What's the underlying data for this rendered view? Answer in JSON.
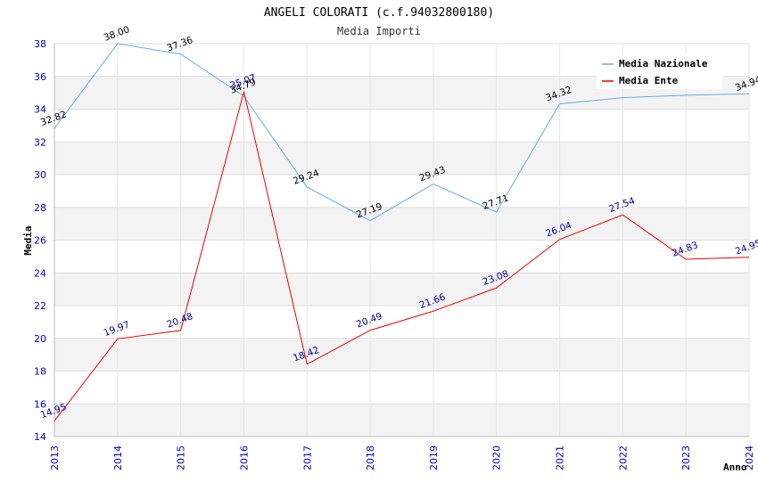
{
  "chart_data": {
    "type": "line",
    "title": "ANGELI COLORATI (c.f.94032800180)",
    "subtitle": "Media Importi",
    "xlabel": "Anno",
    "ylabel": "Media",
    "ylim": [
      14,
      38
    ],
    "yticks": [
      "14",
      "16",
      "18",
      "20",
      "22",
      "24",
      "26",
      "28",
      "30",
      "32",
      "34",
      "36",
      "38"
    ],
    "categories": [
      "2013",
      "2014",
      "2015",
      "2016",
      "2017",
      "2018",
      "2019",
      "2020",
      "2021",
      "2022",
      "2023",
      "2024"
    ],
    "grid": true,
    "legend_position": "top-right",
    "series": [
      {
        "name": "Media Nazionale",
        "color": "#66aaee",
        "label_color": "#000000",
        "values": [
          32.82,
          38.0,
          37.36,
          34.79,
          29.24,
          27.19,
          29.43,
          27.71,
          34.32,
          34.7,
          34.85,
          34.94
        ],
        "labels": [
          "32.82",
          "38.00",
          "37.36",
          "34.79",
          "29.24",
          "27.19",
          "29.43",
          "27.71",
          "34.32",
          "",
          "",
          "34.94"
        ]
      },
      {
        "name": "Media Ente",
        "color": "#ee0000",
        "label_color": "#000099",
        "values": [
          14.95,
          19.97,
          20.48,
          35.07,
          18.42,
          20.49,
          21.66,
          23.08,
          26.04,
          27.54,
          24.83,
          24.95
        ],
        "labels": [
          "14.95",
          "19.97",
          "20.48",
          "35.07",
          "18.42",
          "20.49",
          "21.66",
          "23.08",
          "26.04",
          "27.54",
          "24.83",
          "24.95"
        ]
      }
    ]
  }
}
